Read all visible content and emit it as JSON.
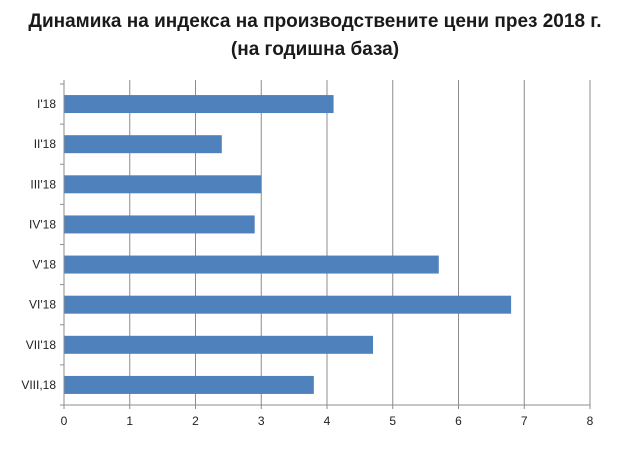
{
  "title": "Динамика на индекса на производствените цени през 2018 г.",
  "subtitle": "(на годишна база)",
  "chart_data": {
    "type": "bar",
    "orientation": "horizontal",
    "title": "Динамика на индекса на производствените цени през 2018 г.",
    "subtitle": "(на годишна база)",
    "categories": [
      "I'18",
      "II'18",
      "III'18",
      "IV'18",
      "V'18",
      "VI'18",
      "VII'18",
      "VIII,18"
    ],
    "values": [
      4.1,
      2.4,
      3.0,
      2.9,
      5.7,
      6.8,
      4.7,
      3.8
    ],
    "xlim": [
      0,
      8
    ],
    "xticks": [
      "0",
      "1",
      "2",
      "3",
      "4",
      "5",
      "6",
      "7",
      "8"
    ],
    "grid": "vertical",
    "bar_color": "#4f81bd",
    "legend": "none"
  }
}
